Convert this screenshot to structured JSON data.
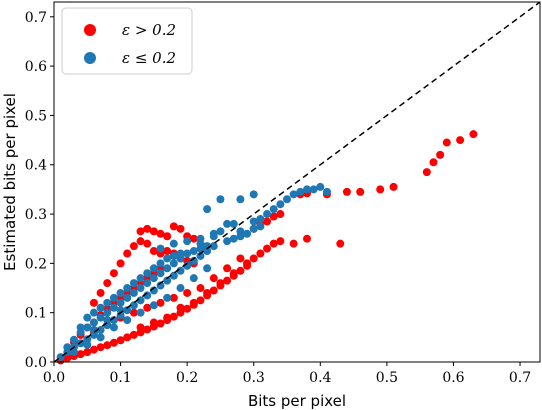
{
  "chart_data": {
    "type": "scatter",
    "title": "",
    "xlabel": "Bits per pixel",
    "ylabel": "Estimated bits per pixel",
    "xlim": [
      0.0,
      0.73
    ],
    "ylim": [
      0.0,
      0.73
    ],
    "xticks": [
      "0.0",
      "0.1",
      "0.2",
      "0.3",
      "0.4",
      "0.5",
      "0.6",
      "0.7"
    ],
    "yticks": [
      "0.0",
      "0.1",
      "0.2",
      "0.3",
      "0.4",
      "0.5",
      "0.6",
      "0.7"
    ],
    "grid": false,
    "legend_position": "top-left",
    "reference_line": {
      "style": "dashed",
      "color": "#000000",
      "from": [
        0,
        0
      ],
      "to": [
        0.73,
        0.73
      ]
    },
    "series": [
      {
        "name": "ε > 0.2",
        "color": "#ff0000",
        "points": [
          [
            0.01,
            0.003
          ],
          [
            0.02,
            0.008
          ],
          [
            0.03,
            0.012
          ],
          [
            0.04,
            0.016
          ],
          [
            0.05,
            0.02
          ],
          [
            0.06,
            0.025
          ],
          [
            0.07,
            0.03
          ],
          [
            0.08,
            0.034
          ],
          [
            0.09,
            0.039
          ],
          [
            0.1,
            0.044
          ],
          [
            0.11,
            0.05
          ],
          [
            0.12,
            0.055
          ],
          [
            0.13,
            0.06
          ],
          [
            0.14,
            0.066
          ],
          [
            0.15,
            0.072
          ],
          [
            0.16,
            0.078
          ],
          [
            0.17,
            0.085
          ],
          [
            0.18,
            0.092
          ],
          [
            0.19,
            0.1
          ],
          [
            0.2,
            0.108
          ],
          [
            0.21,
            0.116
          ],
          [
            0.22,
            0.125
          ],
          [
            0.23,
            0.135
          ],
          [
            0.24,
            0.145
          ],
          [
            0.25,
            0.155
          ],
          [
            0.26,
            0.165
          ],
          [
            0.27,
            0.175
          ],
          [
            0.28,
            0.185
          ],
          [
            0.29,
            0.195
          ],
          [
            0.05,
            0.07
          ],
          [
            0.06,
            0.08
          ],
          [
            0.07,
            0.095
          ],
          [
            0.08,
            0.108
          ],
          [
            0.09,
            0.12
          ],
          [
            0.1,
            0.13
          ],
          [
            0.11,
            0.14
          ],
          [
            0.12,
            0.15
          ],
          [
            0.13,
            0.16
          ],
          [
            0.14,
            0.17
          ],
          [
            0.15,
            0.18
          ],
          [
            0.16,
            0.19
          ],
          [
            0.03,
            0.04
          ],
          [
            0.04,
            0.055
          ],
          [
            0.06,
            0.06
          ],
          [
            0.08,
            0.075
          ],
          [
            0.1,
            0.09
          ],
          [
            0.12,
            0.1
          ],
          [
            0.14,
            0.11
          ],
          [
            0.16,
            0.12
          ],
          [
            0.18,
            0.13
          ],
          [
            0.2,
            0.14
          ],
          [
            0.22,
            0.15
          ],
          [
            0.24,
            0.17
          ],
          [
            0.26,
            0.19
          ],
          [
            0.28,
            0.21
          ],
          [
            0.13,
            0.07
          ],
          [
            0.15,
            0.08
          ],
          [
            0.17,
            0.09
          ],
          [
            0.19,
            0.11
          ],
          [
            0.21,
            0.12
          ],
          [
            0.23,
            0.14
          ],
          [
            0.25,
            0.16
          ],
          [
            0.27,
            0.18
          ],
          [
            0.29,
            0.2
          ],
          [
            0.06,
            0.12
          ],
          [
            0.07,
            0.14
          ],
          [
            0.08,
            0.16
          ],
          [
            0.09,
            0.18
          ],
          [
            0.1,
            0.2
          ],
          [
            0.11,
            0.22
          ],
          [
            0.12,
            0.235
          ],
          [
            0.13,
            0.245
          ],
          [
            0.14,
            0.24
          ],
          [
            0.15,
            0.225
          ],
          [
            0.16,
            0.22
          ],
          [
            0.17,
            0.225
          ],
          [
            0.18,
            0.22
          ],
          [
            0.19,
            0.21
          ],
          [
            0.2,
            0.205
          ],
          [
            0.21,
            0.2
          ],
          [
            0.13,
            0.265
          ],
          [
            0.14,
            0.27
          ],
          [
            0.15,
            0.265
          ],
          [
            0.16,
            0.26
          ],
          [
            0.17,
            0.255
          ],
          [
            0.18,
            0.275
          ],
          [
            0.19,
            0.27
          ],
          [
            0.2,
            0.255
          ],
          [
            0.21,
            0.25
          ],
          [
            0.3,
            0.21
          ],
          [
            0.31,
            0.22
          ],
          [
            0.32,
            0.23
          ],
          [
            0.33,
            0.24
          ],
          [
            0.34,
            0.245
          ],
          [
            0.3,
            0.27
          ],
          [
            0.31,
            0.28
          ],
          [
            0.32,
            0.285
          ],
          [
            0.33,
            0.295
          ],
          [
            0.34,
            0.3
          ],
          [
            0.37,
            0.34
          ],
          [
            0.38,
            0.342
          ],
          [
            0.41,
            0.34
          ],
          [
            0.44,
            0.345
          ],
          [
            0.46,
            0.345
          ],
          [
            0.49,
            0.35
          ],
          [
            0.51,
            0.355
          ],
          [
            0.43,
            0.24
          ],
          [
            0.36,
            0.24
          ],
          [
            0.38,
            0.25
          ],
          [
            0.56,
            0.385
          ],
          [
            0.57,
            0.405
          ],
          [
            0.58,
            0.42
          ],
          [
            0.59,
            0.445
          ],
          [
            0.61,
            0.45
          ],
          [
            0.63,
            0.462
          ]
        ]
      },
      {
        "name": "ε ≤ 0.2",
        "color": "#1f77b4",
        "points": [
          [
            0.01,
            0.01
          ],
          [
            0.02,
            0.02
          ],
          [
            0.03,
            0.03
          ],
          [
            0.04,
            0.038
          ],
          [
            0.05,
            0.046
          ],
          [
            0.06,
            0.055
          ],
          [
            0.07,
            0.065
          ],
          [
            0.08,
            0.075
          ],
          [
            0.09,
            0.085
          ],
          [
            0.1,
            0.095
          ],
          [
            0.11,
            0.105
          ],
          [
            0.12,
            0.115
          ],
          [
            0.13,
            0.125
          ],
          [
            0.14,
            0.135
          ],
          [
            0.15,
            0.145
          ],
          [
            0.16,
            0.155
          ],
          [
            0.17,
            0.165
          ],
          [
            0.18,
            0.175
          ],
          [
            0.19,
            0.185
          ],
          [
            0.2,
            0.195
          ],
          [
            0.21,
            0.205
          ],
          [
            0.22,
            0.215
          ],
          [
            0.23,
            0.225
          ],
          [
            0.24,
            0.235
          ],
          [
            0.02,
            0.03
          ],
          [
            0.03,
            0.045
          ],
          [
            0.04,
            0.06
          ],
          [
            0.05,
            0.07
          ],
          [
            0.06,
            0.08
          ],
          [
            0.07,
            0.09
          ],
          [
            0.08,
            0.1
          ],
          [
            0.09,
            0.11
          ],
          [
            0.1,
            0.12
          ],
          [
            0.11,
            0.13
          ],
          [
            0.12,
            0.14
          ],
          [
            0.13,
            0.15
          ],
          [
            0.14,
            0.16
          ],
          [
            0.15,
            0.17
          ],
          [
            0.16,
            0.18
          ],
          [
            0.17,
            0.19
          ],
          [
            0.18,
            0.2
          ],
          [
            0.19,
            0.21
          ],
          [
            0.2,
            0.22
          ],
          [
            0.21,
            0.225
          ],
          [
            0.22,
            0.23
          ],
          [
            0.23,
            0.235
          ],
          [
            0.03,
            0.02
          ],
          [
            0.05,
            0.035
          ],
          [
            0.07,
            0.05
          ],
          [
            0.09,
            0.07
          ],
          [
            0.11,
            0.085
          ],
          [
            0.13,
            0.1
          ],
          [
            0.15,
            0.115
          ],
          [
            0.17,
            0.13
          ],
          [
            0.19,
            0.15
          ],
          [
            0.21,
            0.17
          ],
          [
            0.23,
            0.19
          ],
          [
            0.05,
            0.09
          ],
          [
            0.07,
            0.11
          ],
          [
            0.09,
            0.13
          ],
          [
            0.11,
            0.15
          ],
          [
            0.13,
            0.17
          ],
          [
            0.15,
            0.19
          ],
          [
            0.17,
            0.21
          ],
          [
            0.19,
            0.22
          ],
          [
            0.04,
            0.07
          ],
          [
            0.06,
            0.1
          ],
          [
            0.08,
            0.12
          ],
          [
            0.1,
            0.14
          ],
          [
            0.12,
            0.16
          ],
          [
            0.14,
            0.18
          ],
          [
            0.16,
            0.2
          ],
          [
            0.18,
            0.215
          ],
          [
            0.16,
            0.23
          ],
          [
            0.18,
            0.24
          ],
          [
            0.2,
            0.245
          ],
          [
            0.22,
            0.25
          ],
          [
            0.24,
            0.255
          ],
          [
            0.26,
            0.245
          ],
          [
            0.27,
            0.25
          ],
          [
            0.28,
            0.255
          ],
          [
            0.29,
            0.26
          ],
          [
            0.25,
            0.265
          ],
          [
            0.26,
            0.28
          ],
          [
            0.27,
            0.28
          ],
          [
            0.28,
            0.265
          ],
          [
            0.3,
            0.27
          ],
          [
            0.31,
            0.275
          ],
          [
            0.32,
            0.3
          ],
          [
            0.33,
            0.31
          ],
          [
            0.34,
            0.32
          ],
          [
            0.37,
            0.345
          ],
          [
            0.38,
            0.35
          ],
          [
            0.39,
            0.35
          ],
          [
            0.4,
            0.355
          ],
          [
            0.41,
            0.345
          ],
          [
            0.35,
            0.33
          ],
          [
            0.36,
            0.34
          ],
          [
            0.3,
            0.285
          ],
          [
            0.31,
            0.29
          ],
          [
            0.23,
            0.31
          ],
          [
            0.25,
            0.33
          ],
          [
            0.28,
            0.33
          ],
          [
            0.3,
            0.34
          ],
          [
            0.22,
            0.24
          ],
          [
            0.24,
            0.26
          ],
          [
            0.06,
            0.065
          ],
          [
            0.08,
            0.085
          ],
          [
            0.1,
            0.105
          ]
        ]
      }
    ]
  }
}
